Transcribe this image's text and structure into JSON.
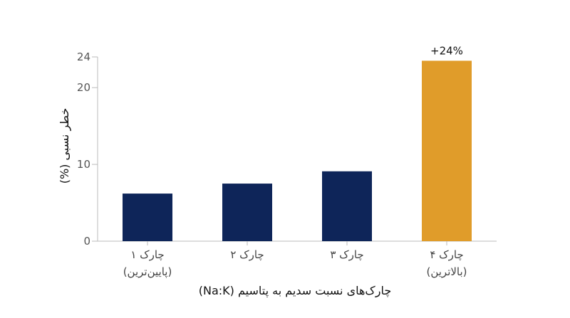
{
  "chart_data": {
    "type": "bar",
    "categories": [
      [
        "چارک ۱",
        "(پایین‌ترین)"
      ],
      [
        "چارک ۲"
      ],
      [
        "چارک ۳"
      ],
      [
        "چارک ۴",
        "(بالاترین)"
      ]
    ],
    "values": [
      6.2,
      7.5,
      9.1,
      23.5
    ],
    "colors": [
      "#0e2559",
      "#0e2559",
      "#0e2559",
      "#e09c2a"
    ],
    "data_labels": [
      "",
      "",
      "",
      "+24%"
    ],
    "yticks": [
      0,
      10,
      20,
      24
    ],
    "ylim": [
      0,
      24
    ],
    "ylabel": "خطر نسبی (%)",
    "xlabel": "چارک‌های نسبت سدیم به پتاسیم (Na:K)",
    "grid": false,
    "axis_color": "#bbbbbb"
  }
}
